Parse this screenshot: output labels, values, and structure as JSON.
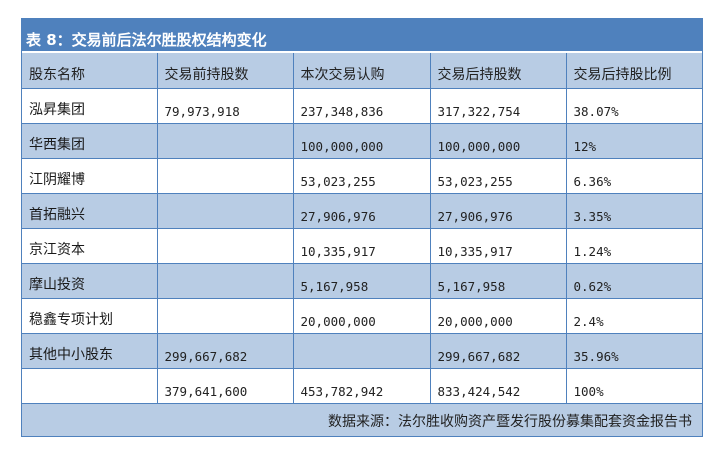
{
  "title": "表 8：交易前后法尔胜股权结构变化",
  "colors": {
    "title_bg": "#4f81bd",
    "header_bg": "#b8cce4",
    "shaded_row_bg": "#b8cce4",
    "plain_row_bg": "#ffffff",
    "border": "#4f81bd"
  },
  "table": {
    "headers": [
      "股东名称",
      "交易前持股数",
      "本次交易认购",
      "交易后持股数",
      "交易后持股比例"
    ],
    "rows": [
      {
        "name": "泓昇集团",
        "before": "79,973,918",
        "subscribe": "237,348,836",
        "after": "317,322,754",
        "ratio": "38.07%"
      },
      {
        "name": "华西集团",
        "before": "",
        "subscribe": "100,000,000",
        "after": "100,000,000",
        "ratio": "12%"
      },
      {
        "name": "江阴耀博",
        "before": "",
        "subscribe": "53,023,255",
        "after": "53,023,255",
        "ratio": "6.36%"
      },
      {
        "name": "首拓融兴",
        "before": "",
        "subscribe": "27,906,976",
        "after": "27,906,976",
        "ratio": "3.35%"
      },
      {
        "name": "京江资本",
        "before": "",
        "subscribe": "10,335,917",
        "after": "10,335,917",
        "ratio": "1.24%"
      },
      {
        "name": "摩山投资",
        "before": "",
        "subscribe": "5,167,958",
        "after": "5,167,958",
        "ratio": "0.62%"
      },
      {
        "name": "稳鑫专项计划",
        "before": "",
        "subscribe": "20,000,000",
        "after": "20,000,000",
        "ratio": "2.4%"
      },
      {
        "name": "其他中小股东",
        "before": "299,667,682",
        "subscribe": "",
        "after": "299,667,682",
        "ratio": "35.96%"
      },
      {
        "name": "",
        "before": "379,641,600",
        "subscribe": "453,782,942",
        "after": "833,424,542",
        "ratio": "100%"
      }
    ]
  },
  "footer": "数据来源：法尔胜收购资产暨发行股份募集配套资金报告书"
}
